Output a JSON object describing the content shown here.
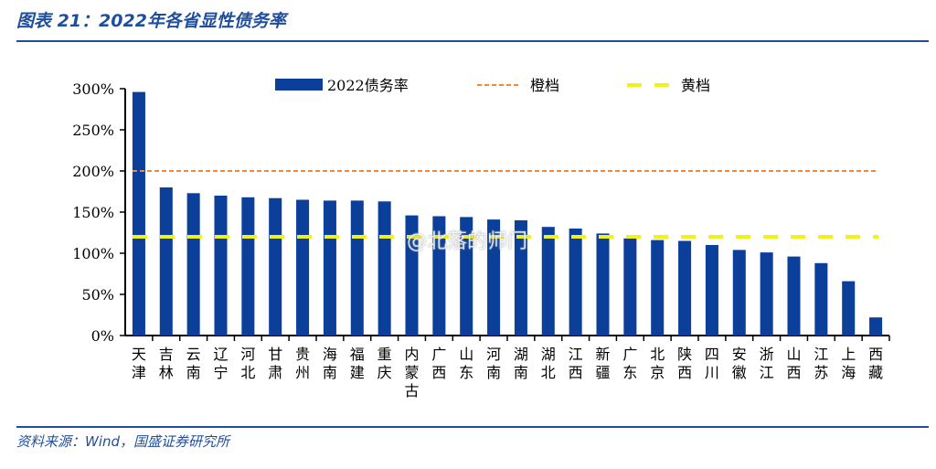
{
  "header": {
    "title": "图表 21：2022年各省显性债务率"
  },
  "footer": {
    "source": "资料来源：Wind，国盛证券研究所"
  },
  "watermark": "@北落的师门",
  "colors": {
    "bar": "#0b3f9a",
    "orange": "#f0883a",
    "yellow": "#f2f21a",
    "brand": "#1f4e9c"
  },
  "chart_data": {
    "type": "bar",
    "title": "",
    "xlabel": "",
    "ylabel": "",
    "ylim": [
      0,
      300
    ],
    "yticks": [
      "0%",
      "50%",
      "100%",
      "150%",
      "200%",
      "250%",
      "300%"
    ],
    "categories": [
      "天津",
      "吉林",
      "云南",
      "辽宁",
      "河北",
      "甘肃",
      "贵州",
      "海南",
      "福建",
      "重庆",
      "内蒙古",
      "广西",
      "山东",
      "河南",
      "湖南",
      "湖北",
      "江西",
      "新疆",
      "广东",
      "北京",
      "陕西",
      "四川",
      "安徽",
      "浙江",
      "山西",
      "江苏",
      "上海",
      "西藏"
    ],
    "series": [
      {
        "name": "2022债务率",
        "values": [
          296,
          180,
          173,
          170,
          168,
          167,
          165,
          164,
          164,
          163,
          146,
          145,
          144,
          141,
          140,
          132,
          130,
          124,
          118,
          116,
          115,
          110,
          104,
          101,
          96,
          88,
          66,
          22
        ]
      }
    ],
    "reference_lines": [
      {
        "name": "橙档",
        "value": 200,
        "style": "dashed",
        "color": "#f0883a"
      },
      {
        "name": "黄档",
        "value": 120,
        "style": "dashed",
        "color": "#f2f21a"
      }
    ],
    "legend": "top",
    "grid": false
  }
}
